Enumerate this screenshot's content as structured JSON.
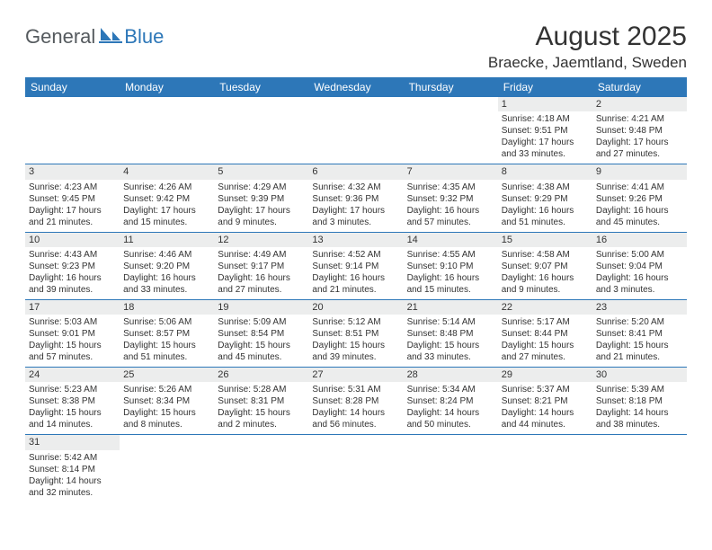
{
  "logo": {
    "text1": "General",
    "text2": "Blue"
  },
  "title": "August 2025",
  "location": "Braecke, Jaemtland, Sweden",
  "header_bg": "#2d77b8",
  "header_fg": "#ffffff",
  "daynum_bg": "#eceded",
  "cell_border": "#2d77b8",
  "dayNames": [
    "Sunday",
    "Monday",
    "Tuesday",
    "Wednesday",
    "Thursday",
    "Friday",
    "Saturday"
  ],
  "weeks": [
    [
      null,
      null,
      null,
      null,
      null,
      {
        "n": "1",
        "sr": "Sunrise: 4:18 AM",
        "ss": "Sunset: 9:51 PM",
        "dl": "Daylight: 17 hours and 33 minutes."
      },
      {
        "n": "2",
        "sr": "Sunrise: 4:21 AM",
        "ss": "Sunset: 9:48 PM",
        "dl": "Daylight: 17 hours and 27 minutes."
      }
    ],
    [
      {
        "n": "3",
        "sr": "Sunrise: 4:23 AM",
        "ss": "Sunset: 9:45 PM",
        "dl": "Daylight: 17 hours and 21 minutes."
      },
      {
        "n": "4",
        "sr": "Sunrise: 4:26 AM",
        "ss": "Sunset: 9:42 PM",
        "dl": "Daylight: 17 hours and 15 minutes."
      },
      {
        "n": "5",
        "sr": "Sunrise: 4:29 AM",
        "ss": "Sunset: 9:39 PM",
        "dl": "Daylight: 17 hours and 9 minutes."
      },
      {
        "n": "6",
        "sr": "Sunrise: 4:32 AM",
        "ss": "Sunset: 9:36 PM",
        "dl": "Daylight: 17 hours and 3 minutes."
      },
      {
        "n": "7",
        "sr": "Sunrise: 4:35 AM",
        "ss": "Sunset: 9:32 PM",
        "dl": "Daylight: 16 hours and 57 minutes."
      },
      {
        "n": "8",
        "sr": "Sunrise: 4:38 AM",
        "ss": "Sunset: 9:29 PM",
        "dl": "Daylight: 16 hours and 51 minutes."
      },
      {
        "n": "9",
        "sr": "Sunrise: 4:41 AM",
        "ss": "Sunset: 9:26 PM",
        "dl": "Daylight: 16 hours and 45 minutes."
      }
    ],
    [
      {
        "n": "10",
        "sr": "Sunrise: 4:43 AM",
        "ss": "Sunset: 9:23 PM",
        "dl": "Daylight: 16 hours and 39 minutes."
      },
      {
        "n": "11",
        "sr": "Sunrise: 4:46 AM",
        "ss": "Sunset: 9:20 PM",
        "dl": "Daylight: 16 hours and 33 minutes."
      },
      {
        "n": "12",
        "sr": "Sunrise: 4:49 AM",
        "ss": "Sunset: 9:17 PM",
        "dl": "Daylight: 16 hours and 27 minutes."
      },
      {
        "n": "13",
        "sr": "Sunrise: 4:52 AM",
        "ss": "Sunset: 9:14 PM",
        "dl": "Daylight: 16 hours and 21 minutes."
      },
      {
        "n": "14",
        "sr": "Sunrise: 4:55 AM",
        "ss": "Sunset: 9:10 PM",
        "dl": "Daylight: 16 hours and 15 minutes."
      },
      {
        "n": "15",
        "sr": "Sunrise: 4:58 AM",
        "ss": "Sunset: 9:07 PM",
        "dl": "Daylight: 16 hours and 9 minutes."
      },
      {
        "n": "16",
        "sr": "Sunrise: 5:00 AM",
        "ss": "Sunset: 9:04 PM",
        "dl": "Daylight: 16 hours and 3 minutes."
      }
    ],
    [
      {
        "n": "17",
        "sr": "Sunrise: 5:03 AM",
        "ss": "Sunset: 9:01 PM",
        "dl": "Daylight: 15 hours and 57 minutes."
      },
      {
        "n": "18",
        "sr": "Sunrise: 5:06 AM",
        "ss": "Sunset: 8:57 PM",
        "dl": "Daylight: 15 hours and 51 minutes."
      },
      {
        "n": "19",
        "sr": "Sunrise: 5:09 AM",
        "ss": "Sunset: 8:54 PM",
        "dl": "Daylight: 15 hours and 45 minutes."
      },
      {
        "n": "20",
        "sr": "Sunrise: 5:12 AM",
        "ss": "Sunset: 8:51 PM",
        "dl": "Daylight: 15 hours and 39 minutes."
      },
      {
        "n": "21",
        "sr": "Sunrise: 5:14 AM",
        "ss": "Sunset: 8:48 PM",
        "dl": "Daylight: 15 hours and 33 minutes."
      },
      {
        "n": "22",
        "sr": "Sunrise: 5:17 AM",
        "ss": "Sunset: 8:44 PM",
        "dl": "Daylight: 15 hours and 27 minutes."
      },
      {
        "n": "23",
        "sr": "Sunrise: 5:20 AM",
        "ss": "Sunset: 8:41 PM",
        "dl": "Daylight: 15 hours and 21 minutes."
      }
    ],
    [
      {
        "n": "24",
        "sr": "Sunrise: 5:23 AM",
        "ss": "Sunset: 8:38 PM",
        "dl": "Daylight: 15 hours and 14 minutes."
      },
      {
        "n": "25",
        "sr": "Sunrise: 5:26 AM",
        "ss": "Sunset: 8:34 PM",
        "dl": "Daylight: 15 hours and 8 minutes."
      },
      {
        "n": "26",
        "sr": "Sunrise: 5:28 AM",
        "ss": "Sunset: 8:31 PM",
        "dl": "Daylight: 15 hours and 2 minutes."
      },
      {
        "n": "27",
        "sr": "Sunrise: 5:31 AM",
        "ss": "Sunset: 8:28 PM",
        "dl": "Daylight: 14 hours and 56 minutes."
      },
      {
        "n": "28",
        "sr": "Sunrise: 5:34 AM",
        "ss": "Sunset: 8:24 PM",
        "dl": "Daylight: 14 hours and 50 minutes."
      },
      {
        "n": "29",
        "sr": "Sunrise: 5:37 AM",
        "ss": "Sunset: 8:21 PM",
        "dl": "Daylight: 14 hours and 44 minutes."
      },
      {
        "n": "30",
        "sr": "Sunrise: 5:39 AM",
        "ss": "Sunset: 8:18 PM",
        "dl": "Daylight: 14 hours and 38 minutes."
      }
    ],
    [
      {
        "n": "31",
        "sr": "Sunrise: 5:42 AM",
        "ss": "Sunset: 8:14 PM",
        "dl": "Daylight: 14 hours and 32 minutes."
      },
      null,
      null,
      null,
      null,
      null,
      null
    ]
  ]
}
